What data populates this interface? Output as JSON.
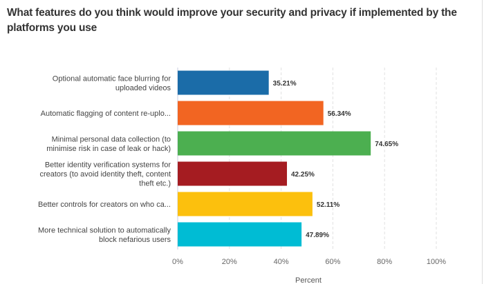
{
  "chart_data": {
    "type": "bar",
    "orientation": "horizontal",
    "title": "What features do you think would improve your security and privacy if implemented by the platforms you use",
    "xlabel": "Percent",
    "ylabel": "",
    "xlim": [
      0,
      100
    ],
    "xticks": [
      "0%",
      "20%",
      "40%",
      "60%",
      "80%",
      "100%"
    ],
    "grid": true,
    "categories": [
      [
        "Optional automatic face blurring for",
        "uploaded videos"
      ],
      [
        "Automatic flagging of content re-uplo..."
      ],
      [
        "Minimal personal data collection (to",
        "minimise risk in case of leak or hack)"
      ],
      [
        "Better identity verification systems for",
        "creators (to avoid identity theft, content",
        "theft etc.)"
      ],
      [
        "Better controls for creators on who ca..."
      ],
      [
        "More technical solution to automatically",
        "block nefarious users"
      ]
    ],
    "values": [
      35.21,
      56.34,
      74.65,
      42.25,
      52.11,
      47.89
    ],
    "value_labels": [
      "35.21%",
      "56.34%",
      "74.65%",
      "42.25%",
      "52.11%",
      "47.89%"
    ],
    "colors": [
      "#1b6ca8",
      "#f26522",
      "#4caf50",
      "#a51c21",
      "#fcc00d",
      "#00bcd4"
    ]
  }
}
